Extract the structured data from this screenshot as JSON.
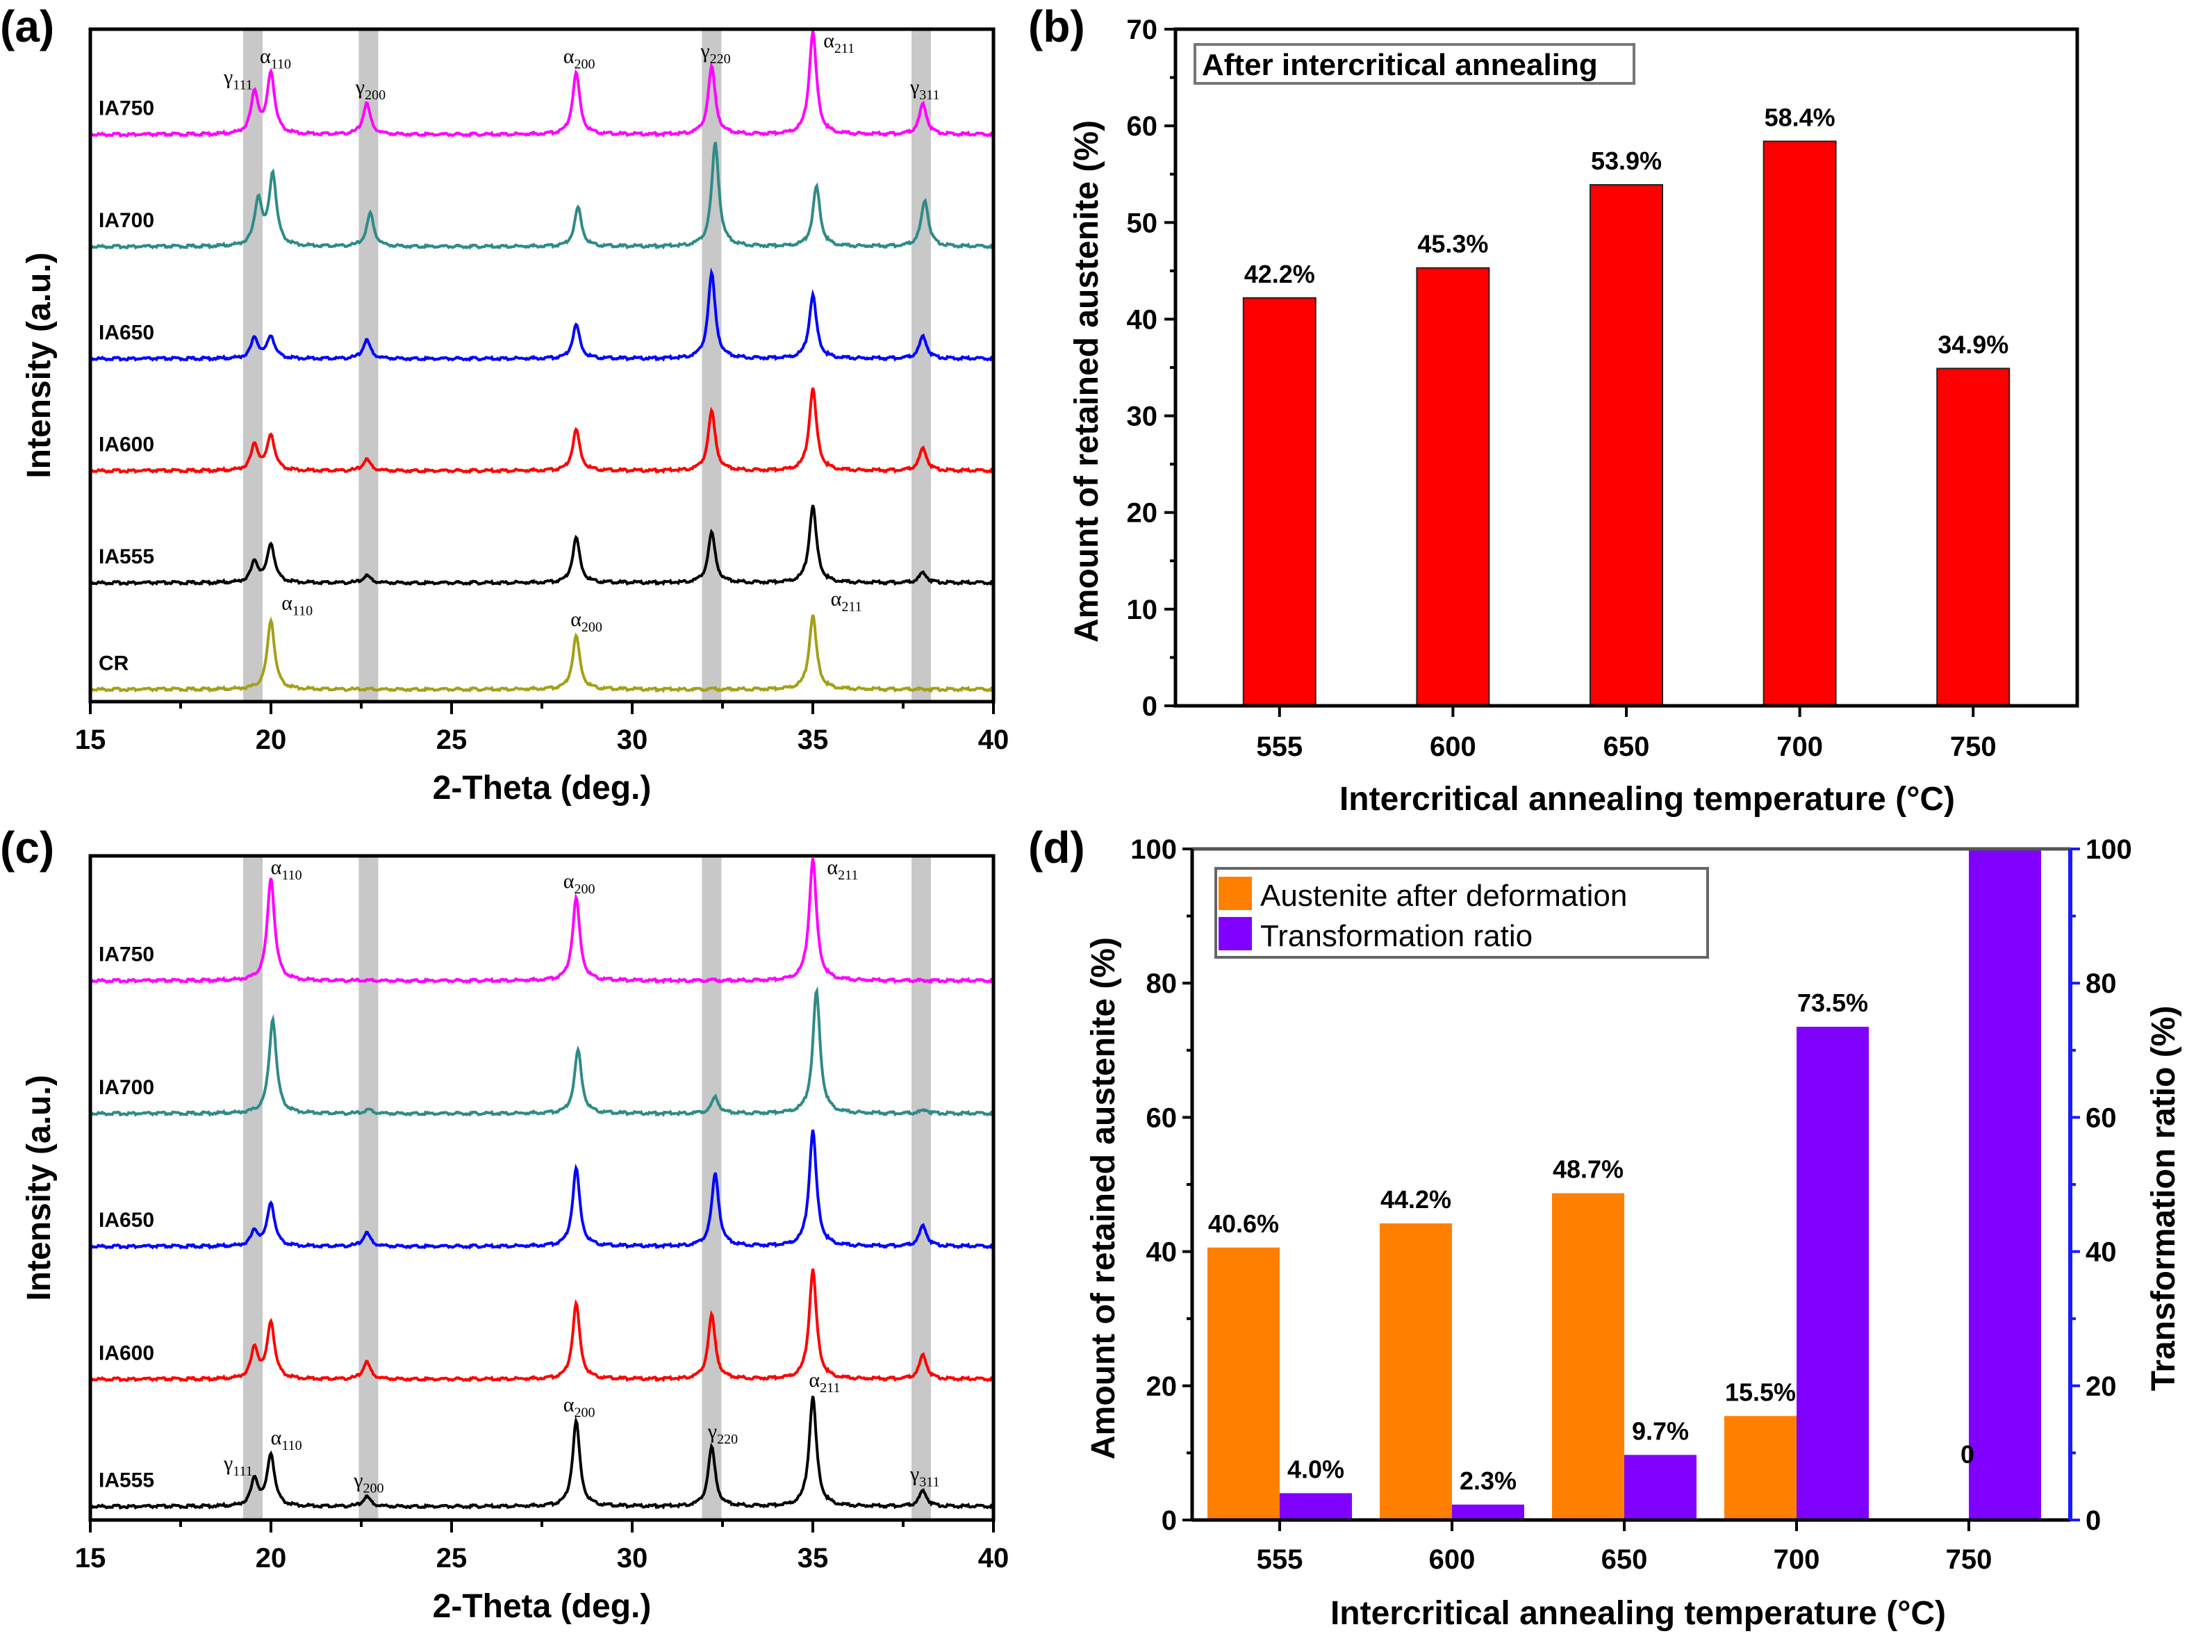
{
  "figure": {
    "panels": [
      "(a)",
      "(b)",
      "(c)",
      "(d)"
    ]
  },
  "chart_data": [
    {
      "id": "a",
      "panel_label": "(a)",
      "type": "line",
      "title": "",
      "xlabel": "2-Theta (deg.)",
      "ylabel": "Intensity (a.u.)",
      "xlim": [
        15,
        40
      ],
      "xticks": [
        15,
        20,
        25,
        30,
        35,
        40
      ],
      "shaded_bands_x": [
        19.5,
        22.7,
        32.2,
        38.0
      ],
      "series": [
        {
          "name": "IA750",
          "color": "#ff00ff",
          "peaks": [
            {
              "x": 19.55,
              "h": 0.4
            },
            {
              "x": 20.0,
              "h": 0.6
            },
            {
              "x": 22.65,
              "h": 0.3
            },
            {
              "x": 28.45,
              "h": 0.6
            },
            {
              "x": 32.2,
              "h": 0.65
            },
            {
              "x": 35.0,
              "h": 1.0
            },
            {
              "x": 38.05,
              "h": 0.3
            }
          ]
        },
        {
          "name": "IA700",
          "color": "#2e8b87",
          "peaks": [
            {
              "x": 19.65,
              "h": 0.45
            },
            {
              "x": 20.05,
              "h": 0.7
            },
            {
              "x": 22.75,
              "h": 0.32
            },
            {
              "x": 28.5,
              "h": 0.38
            },
            {
              "x": 32.3,
              "h": 1.0
            },
            {
              "x": 35.1,
              "h": 0.58
            },
            {
              "x": 38.1,
              "h": 0.45
            }
          ]
        },
        {
          "name": "IA650",
          "color": "#0000ff",
          "peaks": [
            {
              "x": 19.55,
              "h": 0.2
            },
            {
              "x": 20.0,
              "h": 0.22
            },
            {
              "x": 22.65,
              "h": 0.18
            },
            {
              "x": 28.45,
              "h": 0.33
            },
            {
              "x": 32.2,
              "h": 0.82
            },
            {
              "x": 35.0,
              "h": 0.62
            },
            {
              "x": 38.05,
              "h": 0.22
            }
          ]
        },
        {
          "name": "IA600",
          "color": "#ff0000",
          "peaks": [
            {
              "x": 19.55,
              "h": 0.25
            },
            {
              "x": 20.0,
              "h": 0.35
            },
            {
              "x": 22.65,
              "h": 0.11
            },
            {
              "x": 28.45,
              "h": 0.4
            },
            {
              "x": 32.2,
              "h": 0.57
            },
            {
              "x": 35.0,
              "h": 0.8
            },
            {
              "x": 38.05,
              "h": 0.22
            }
          ]
        },
        {
          "name": "IA555",
          "color": "#000000",
          "peaks": [
            {
              "x": 19.55,
              "h": 0.2
            },
            {
              "x": 20.0,
              "h": 0.38
            },
            {
              "x": 22.65,
              "h": 0.07
            },
            {
              "x": 28.45,
              "h": 0.44
            },
            {
              "x": 32.2,
              "h": 0.48
            },
            {
              "x": 35.0,
              "h": 0.75
            },
            {
              "x": 38.05,
              "h": 0.1
            }
          ]
        },
        {
          "name": "CR",
          "color": "#a4a016",
          "peaks": [
            {
              "x": 20.0,
              "h": 0.68
            },
            {
              "x": 28.45,
              "h": 0.52
            },
            {
              "x": 35.0,
              "h": 0.72
            }
          ]
        }
      ],
      "peak_labels": [
        {
          "series": "IA750",
          "greek": "γ",
          "sub": "111",
          "x": 19.0
        },
        {
          "series": "IA750",
          "greek": "α",
          "sub": "110",
          "x": 20.0
        },
        {
          "series": "IA750",
          "greek": "γ",
          "sub": "200",
          "x": 22.65
        },
        {
          "series": "IA750",
          "greek": "α",
          "sub": "200",
          "x": 28.4
        },
        {
          "series": "IA750",
          "greek": "γ",
          "sub": "220",
          "x": 32.2
        },
        {
          "series": "IA750",
          "greek": "α",
          "sub": "211",
          "x": 35.6
        },
        {
          "series": "IA750",
          "greek": "γ",
          "sub": "311",
          "x": 38.0
        },
        {
          "series": "CR",
          "greek": "α",
          "sub": "110",
          "x": 20.6
        },
        {
          "series": "CR",
          "greek": "α",
          "sub": "200",
          "x": 28.6
        },
        {
          "series": "CR",
          "greek": "α",
          "sub": "211",
          "x": 35.8
        }
      ]
    },
    {
      "id": "b",
      "panel_label": "(b)",
      "type": "bar",
      "title": "",
      "annotation": "After intercritical annealing",
      "xlabel": "Intercritical annealing temperature (°C)",
      "ylabel": "Amount of retained austenite (%)",
      "categories": [
        "555",
        "600",
        "650",
        "700",
        "750"
      ],
      "values": [
        42.2,
        45.3,
        53.9,
        58.4,
        34.9
      ],
      "data_labels": [
        "42.2%",
        "45.3%",
        "53.9%",
        "58.4%",
        "34.9%"
      ],
      "ylim": [
        0,
        70
      ],
      "yticks": [
        0,
        10,
        20,
        30,
        40,
        50,
        60,
        70
      ],
      "bar_color": "#ff0000",
      "grid": false
    },
    {
      "id": "c",
      "panel_label": "(c)",
      "type": "line",
      "title": "",
      "xlabel": "2-Theta (deg.)",
      "ylabel": "Intensity (a.u.)",
      "xlim": [
        15,
        40
      ],
      "xticks": [
        15,
        20,
        25,
        30,
        35,
        40
      ],
      "shaded_bands_x": [
        19.5,
        22.7,
        32.2,
        38.0
      ],
      "series": [
        {
          "name": "IA750",
          "color": "#ff00ff",
          "peaks": [
            {
              "x": 20.0,
              "h": 0.85
            },
            {
              "x": 28.45,
              "h": 0.68
            },
            {
              "x": 35.0,
              "h": 1.0
            }
          ]
        },
        {
          "name": "IA700",
          "color": "#2e8b87",
          "peaks": [
            {
              "x": 20.05,
              "h": 0.78
            },
            {
              "x": 22.7,
              "h": 0.03
            },
            {
              "x": 28.5,
              "h": 0.52
            },
            {
              "x": 32.3,
              "h": 0.13
            },
            {
              "x": 35.1,
              "h": 1.0
            },
            {
              "x": 38.1,
              "h": 0.03
            }
          ]
        },
        {
          "name": "IA650",
          "color": "#0000ff",
          "peaks": [
            {
              "x": 19.55,
              "h": 0.12
            },
            {
              "x": 20.0,
              "h": 0.36
            },
            {
              "x": 22.65,
              "h": 0.11
            },
            {
              "x": 28.45,
              "h": 0.64
            },
            {
              "x": 32.3,
              "h": 0.59
            },
            {
              "x": 35.0,
              "h": 0.95
            },
            {
              "x": 38.05,
              "h": 0.17
            }
          ]
        },
        {
          "name": "IA600",
          "color": "#ff0000",
          "peaks": [
            {
              "x": 19.55,
              "h": 0.25
            },
            {
              "x": 20.0,
              "h": 0.47
            },
            {
              "x": 22.65,
              "h": 0.14
            },
            {
              "x": 28.45,
              "h": 0.62
            },
            {
              "x": 32.2,
              "h": 0.52
            },
            {
              "x": 35.0,
              "h": 0.9
            },
            {
              "x": 38.05,
              "h": 0.2
            }
          ]
        },
        {
          "name": "IA555",
          "color": "#000000",
          "peaks": [
            {
              "x": 19.55,
              "h": 0.22
            },
            {
              "x": 20.0,
              "h": 0.43
            },
            {
              "x": 22.65,
              "h": 0.08
            },
            {
              "x": 28.45,
              "h": 0.7
            },
            {
              "x": 32.2,
              "h": 0.48
            },
            {
              "x": 35.0,
              "h": 0.9
            },
            {
              "x": 38.05,
              "h": 0.13
            }
          ]
        }
      ],
      "peak_labels": [
        {
          "series": "IA750",
          "greek": "α",
          "sub": "110",
          "x": 20.3
        },
        {
          "series": "IA750",
          "greek": "α",
          "sub": "200",
          "x": 28.4
        },
        {
          "series": "IA750",
          "greek": "α",
          "sub": "211",
          "x": 35.7
        },
        {
          "series": "IA555",
          "greek": "γ",
          "sub": "111",
          "x": 19.0
        },
        {
          "series": "IA555",
          "greek": "α",
          "sub": "110",
          "x": 20.3
        },
        {
          "series": "IA555",
          "greek": "γ",
          "sub": "200",
          "x": 22.6
        },
        {
          "series": "IA555",
          "greek": "α",
          "sub": "200",
          "x": 28.4
        },
        {
          "series": "IA555",
          "greek": "γ",
          "sub": "220",
          "x": 32.4
        },
        {
          "series": "IA555",
          "greek": "α",
          "sub": "211",
          "x": 35.2
        },
        {
          "series": "IA555",
          "greek": "γ",
          "sub": "311",
          "x": 38.0
        }
      ]
    },
    {
      "id": "d",
      "panel_label": "(d)",
      "type": "bar",
      "title": "",
      "xlabel": "Intercritical annealing temperature (°C)",
      "ylabel": "Amount of retained austenite (%)",
      "ylabel_right": "Transformation ratio (%)",
      "categories": [
        "555",
        "600",
        "650",
        "700",
        "750"
      ],
      "ylim": [
        0,
        100
      ],
      "ylim_right": [
        0,
        100
      ],
      "yticks": [
        0,
        20,
        40,
        60,
        80,
        100
      ],
      "legend_position": "top-left",
      "series": [
        {
          "name": "Austenite after deformation",
          "axis": "left",
          "color": "#ff8000",
          "values": [
            40.6,
            44.2,
            48.7,
            15.5,
            0
          ],
          "data_labels": [
            "40.6%",
            "44.2%",
            "48.7%",
            "15.5%",
            "0"
          ],
          "label_color": "#000000"
        },
        {
          "name": "Transformation ratio",
          "axis": "right",
          "color": "#8000ff",
          "values": [
            4.0,
            2.3,
            9.7,
            73.5,
            100
          ],
          "data_labels": [
            "4.0%",
            "2.3%",
            "9.7%",
            "73.5%",
            ""
          ],
          "label_color": "#1a1aff"
        }
      ],
      "right_axis_color": "#1a1aff",
      "grid": false
    }
  ]
}
